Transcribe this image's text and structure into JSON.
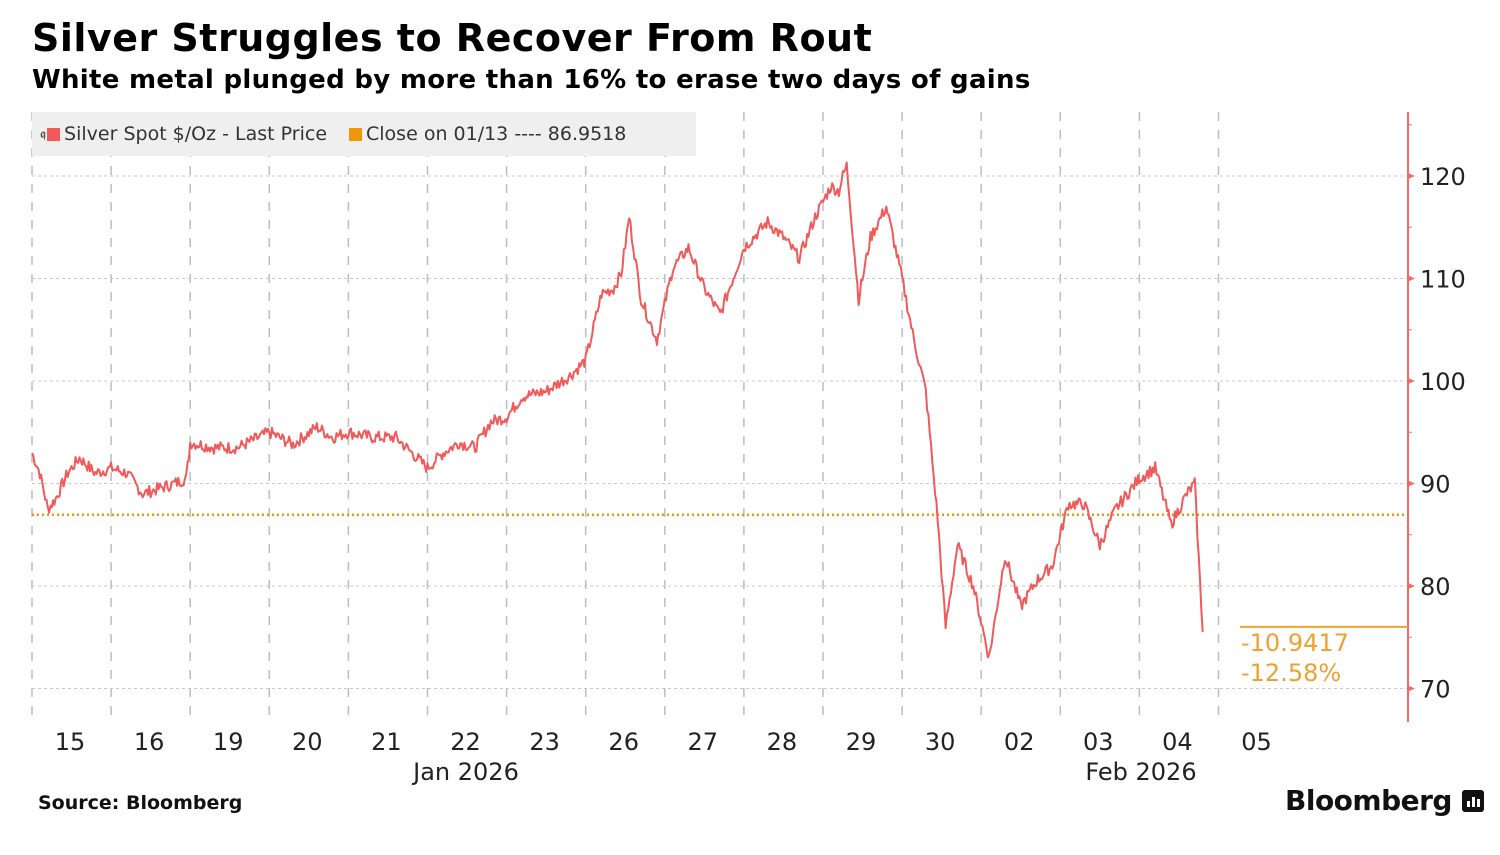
{
  "header": {
    "title": "Silver Struggles to Recover From Rout",
    "subtitle": "White metal plunged by more than 16% to erase two days of gains"
  },
  "legend": {
    "pin_icon": "pin-icon",
    "items": [
      {
        "label": "Silver Spot $/Oz - Last Price",
        "color": "#f05a5a"
      },
      {
        "label": "Close on 01/13 ---- 86.9518",
        "color": "#f0960a"
      }
    ]
  },
  "footer": {
    "source": "Source: Bloomberg",
    "brand": "Bloomberg",
    "brand_icon": "bloomberg-chart-icon"
  },
  "chart_data": {
    "type": "line",
    "title": "Silver Struggles to Recover From Rout",
    "subtitle": "White metal plunged by more than 16% to erase two days of gains",
    "xlabel": "",
    "ylabel": "",
    "y_axis_side": "right",
    "ylim": [
      66,
      126
    ],
    "yticks": [
      70,
      80,
      90,
      100,
      110,
      120
    ],
    "grid": true,
    "legend_position": "top-left",
    "x_ticks": [
      "15",
      "16",
      "19",
      "20",
      "21",
      "22",
      "23",
      "26",
      "27",
      "28",
      "29",
      "30",
      "02",
      "03",
      "04",
      "05"
    ],
    "x_month_labels": [
      {
        "label": "Jan 2026",
        "at_tick": "22"
      },
      {
        "label": "Feb 2026",
        "at_tick": "03.5"
      }
    ],
    "series": [
      {
        "name": "Silver Spot $/Oz - Last Price",
        "color": "#f05a5a",
        "x_day_index": [
          0,
          0.1,
          0.2,
          0.3,
          0.45,
          0.6,
          0.8,
          1.0,
          1.2,
          1.4,
          1.6,
          1.8,
          1.95,
          2.0,
          2.3,
          2.6,
          3.0,
          3.3,
          3.6,
          3.8,
          4.0,
          4.3,
          4.6,
          4.8,
          5.0,
          5.2,
          5.4,
          5.6,
          5.8,
          6.0,
          6.2,
          6.5,
          6.8,
          7.0,
          7.2,
          7.35,
          7.45,
          7.55,
          7.7,
          7.9,
          8.1,
          8.3,
          8.5,
          8.7,
          9.0,
          9.3,
          9.5,
          9.7,
          9.9,
          10.1,
          10.2,
          10.25,
          10.3,
          10.45,
          10.6,
          10.8,
          11.0,
          11.15,
          11.3,
          11.45,
          11.55,
          11.7,
          11.9,
          12.1,
          12.3,
          12.5,
          12.7,
          12.9,
          13.1,
          13.3,
          13.5,
          13.7,
          13.9,
          14.0,
          14.2,
          14.4,
          14.6,
          14.7,
          14.8
        ],
        "values": [
          93,
          91,
          87.5,
          88.5,
          91,
          92.5,
          91,
          91.5,
          91,
          89,
          89.5,
          90,
          90.5,
          94,
          93.5,
          93.5,
          95,
          93.8,
          95.5,
          94.5,
          95,
          94.5,
          94.5,
          93,
          91.5,
          93,
          94,
          93.5,
          96,
          96.5,
          98.5,
          99,
          100.5,
          102,
          108.5,
          109,
          110.5,
          116,
          108,
          104,
          111,
          113,
          109,
          106.5,
          113,
          115.5,
          114,
          112,
          116,
          119,
          118.5,
          120,
          121,
          108,
          114,
          117,
          110,
          104,
          99,
          86.5,
          76,
          84,
          80,
          73,
          83,
          78,
          80.5,
          82,
          88,
          88,
          84,
          87.5,
          89.5,
          90.5,
          91.5,
          86,
          89,
          90,
          75.5
        ]
      },
      {
        "name": "Close on 01/13",
        "color": "#f0960a",
        "style": "dotted",
        "value": 86.9518
      }
    ],
    "annotations": [
      {
        "text": "-10.9417",
        "color": "#f0a030"
      },
      {
        "text": "-12.58%",
        "color": "#f0a030"
      }
    ],
    "last_value_marker": 76.01
  }
}
